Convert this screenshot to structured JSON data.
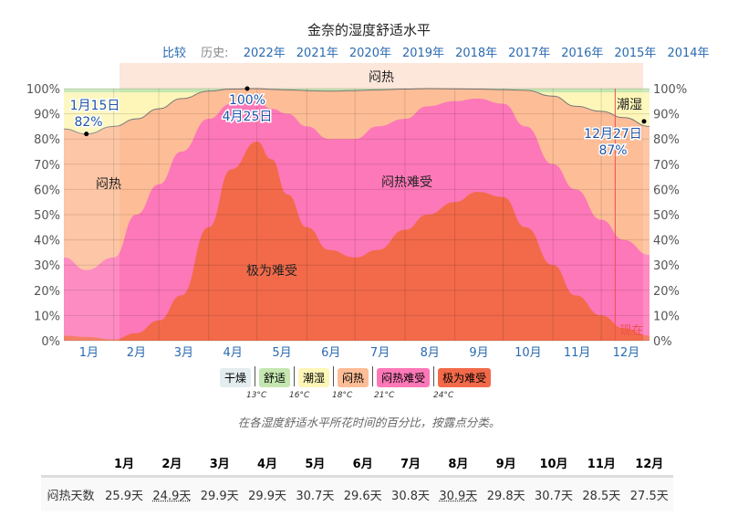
{
  "title": "金奈的湿度舒适水平",
  "nav": {
    "compare": "比较",
    "history": "历史:",
    "years": [
      "2022年",
      "2021年",
      "2020年",
      "2019年",
      "2018年",
      "2017年",
      "2016年",
      "2015年",
      "2014年"
    ]
  },
  "chart_data": {
    "type": "area",
    "stacked": true,
    "x_unit": "day of year",
    "xticks": [
      "1月",
      "2月",
      "3月",
      "4月",
      "5月",
      "6月",
      "7月",
      "8月",
      "9月",
      "10月",
      "11月",
      "12月"
    ],
    "yticks": [
      "0%",
      "10%",
      "20%",
      "30%",
      "40%",
      "50%",
      "60%",
      "70%",
      "80%",
      "90%",
      "100%"
    ],
    "ylim": [
      0,
      100
    ],
    "grid": true,
    "x": [
      1,
      15,
      32,
      46,
      60,
      74,
      91,
      105,
      121,
      130,
      140,
      152,
      166,
      182,
      196,
      213,
      227,
      244,
      258,
      274,
      288,
      305,
      319,
      335,
      349,
      365
    ],
    "cumulative_boundaries": [
      {
        "name": "极为难受",
        "color": "#f26a4a",
        "top": [
          2,
          1.5,
          0.5,
          3,
          8,
          18,
          45,
          68,
          79,
          72,
          58,
          45,
          36,
          33,
          36,
          44,
          50,
          55,
          59,
          57,
          45,
          30,
          18,
          10,
          5,
          2
        ]
      },
      {
        "name": "闷热难受",
        "color": "#fd78b8",
        "top": [
          33,
          28,
          33,
          50,
          62,
          75,
          88,
          94,
          95,
          92,
          90,
          85,
          80,
          80,
          85,
          88,
          93,
          95,
          96,
          94,
          85,
          70,
          60,
          48,
          40,
          34
        ]
      },
      {
        "name": "闷热",
        "color": "#fdbd97",
        "top": [
          84,
          82,
          85,
          88,
          92,
          96,
          99,
          99.8,
          100,
          99.7,
          99.5,
          99.2,
          99,
          99.2,
          99.5,
          99.8,
          100,
          99.9,
          99.8,
          99.6,
          99.3,
          97,
          93,
          91,
          88.5,
          85
        ]
      },
      {
        "name": "潮湿",
        "color": "#fdf6b8",
        "top": [
          98.5,
          98.5,
          98.5,
          98.5,
          98.5,
          98.5,
          98.5,
          98.5,
          98.5,
          98.5,
          98.5,
          98.5,
          98.5,
          98.5,
          98.5,
          98.5,
          98.5,
          98.5,
          98.5,
          98.5,
          98.5,
          98.5,
          98.5,
          98.5,
          98.5,
          98.5
        ]
      },
      {
        "name": "舒适",
        "color": "#c5e6b0",
        "top": [
          100,
          100,
          100,
          100,
          100,
          100,
          100,
          100,
          100,
          100,
          100,
          100,
          100,
          100,
          100,
          100,
          100,
          100,
          100,
          100,
          100,
          100,
          100,
          100,
          100,
          100
        ]
      }
    ],
    "top_band_label": "闷热",
    "area_labels": {
      "muggy": "闷热",
      "oppressive": "闷热难受",
      "miserable": "极为难受",
      "humid": "潮湿"
    },
    "annotations": [
      {
        "date": "1月15日",
        "value": "82%",
        "day": 15,
        "y": 82
      },
      {
        "date": "4月25日",
        "value": "100%",
        "day": 115,
        "y": 100
      },
      {
        "date": "12月27日",
        "value": "87%",
        "day": 361,
        "y": 87
      }
    ],
    "now_label": "现在",
    "now_day": 338
  },
  "legend": {
    "items": [
      {
        "label": "干燥",
        "color": "#e3ecee"
      },
      {
        "label": "舒适",
        "color": "#c5e6b0"
      },
      {
        "label": "潮湿",
        "color": "#fdf6b8"
      },
      {
        "label": "闷热",
        "color": "#fdbd97"
      },
      {
        "label": "闷热难受",
        "color": "#fd78b8"
      },
      {
        "label": "极为难受",
        "color": "#f26a4a"
      }
    ],
    "temps": [
      "13°C",
      "16°C",
      "18°C",
      "21°C",
      "24°C"
    ]
  },
  "caption": "在各湿度舒适水平所花时间的百分比，按露点分类。",
  "table": {
    "row_label": "闷热天数",
    "months": [
      "1月",
      "2月",
      "3月",
      "4月",
      "5月",
      "6月",
      "7月",
      "8月",
      "9月",
      "10月",
      "11月",
      "12月"
    ],
    "values": [
      "25.9天",
      "24.9天",
      "29.9天",
      "29.9天",
      "30.7天",
      "29.6天",
      "30.8天",
      "30.9天",
      "29.8天",
      "30.7天",
      "28.5天",
      "27.5天"
    ]
  }
}
